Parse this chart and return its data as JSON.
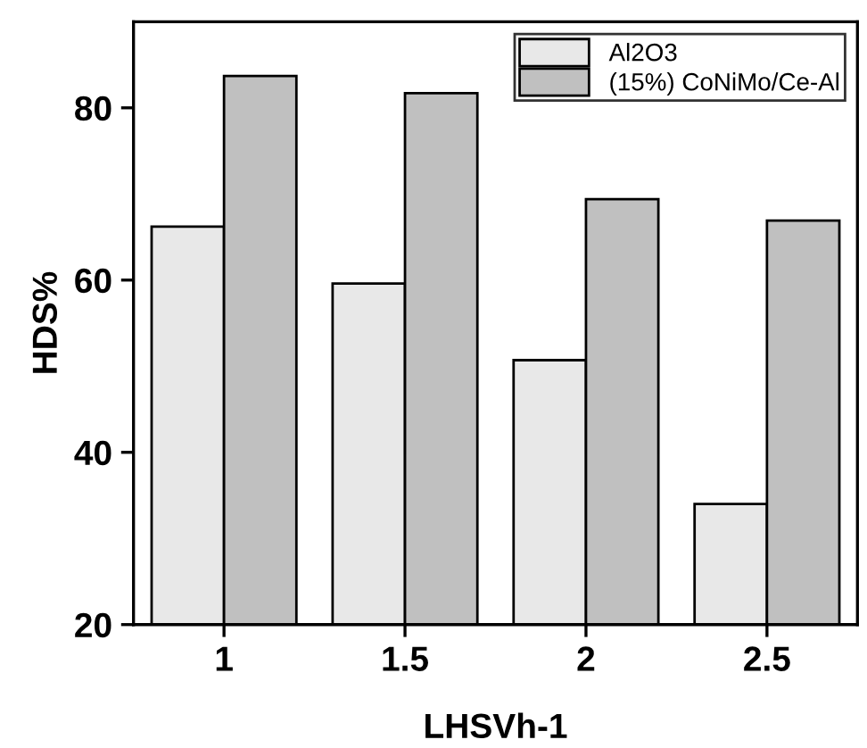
{
  "chart_data": {
    "type": "bar",
    "xlabel": "LHSVh-1",
    "ylabel": "HDS%",
    "categories": [
      "1",
      "1.5",
      "2",
      "2.5"
    ],
    "series": [
      {
        "name": "Al2O3",
        "color": "#e8e8e8",
        "values": [
          66.2,
          59.6,
          50.7,
          34.0
        ]
      },
      {
        "name": "(15%) CoNiMo/Ce-Al",
        "color": "#c0c0c0",
        "values": [
          83.7,
          81.7,
          69.4,
          66.9
        ]
      }
    ],
    "ylim": [
      20,
      90
    ],
    "yticks": [
      20,
      40,
      60,
      80
    ],
    "grid": false,
    "legend": "top right"
  }
}
